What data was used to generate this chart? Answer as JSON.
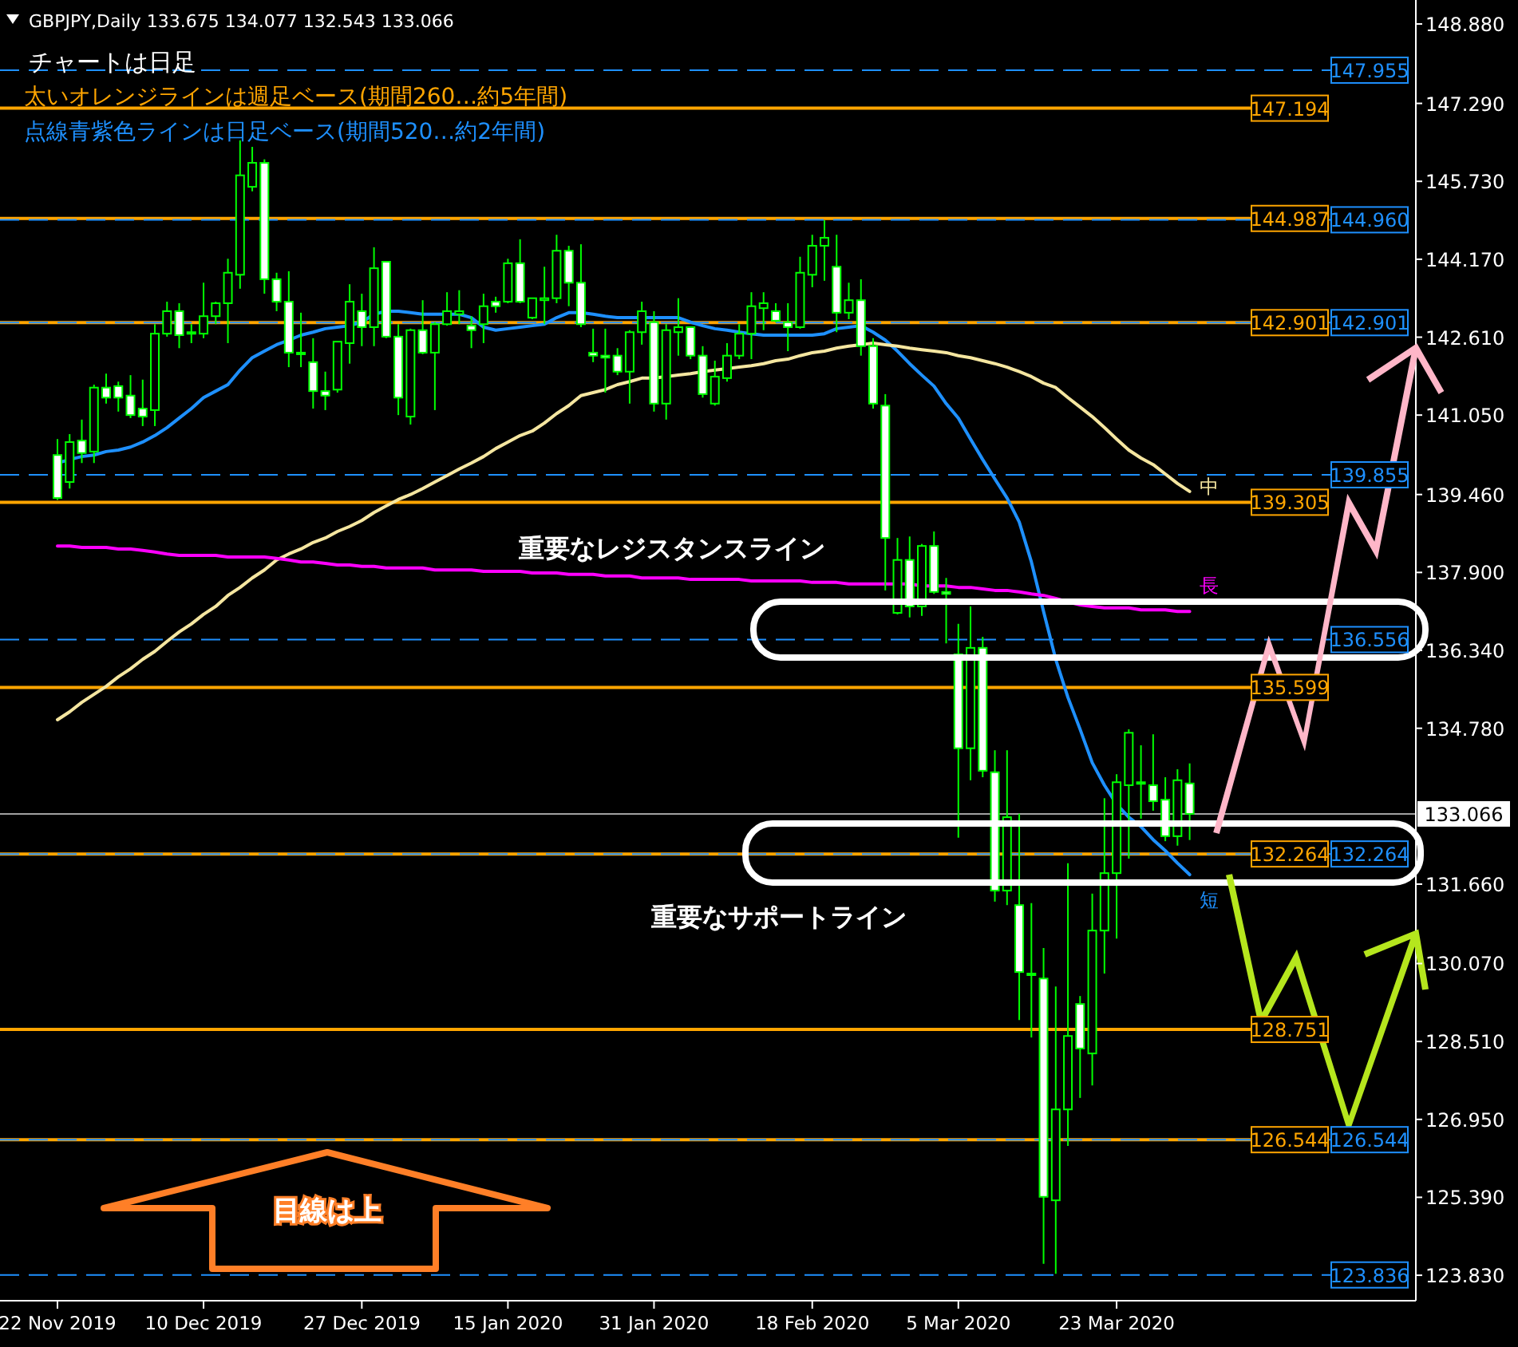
{
  "chart_data": {
    "type": "candlestick",
    "title": "GBPJPY,Daily 133.675 134.077 132.543 133.066",
    "color": "#00ff00",
    "categories": [
      "22 Nov 2019",
      null,
      null,
      null,
      null,
      null,
      null,
      null,
      null,
      null,
      null,
      null,
      "10 Dec 2019",
      null,
      null,
      null,
      null,
      null,
      null,
      null,
      null,
      null,
      null,
      null,
      null,
      "27 Dec 2019",
      null,
      null,
      null,
      null,
      null,
      null,
      null,
      null,
      null,
      null,
      null,
      "15 Jan 2020",
      null,
      null,
      null,
      null,
      null,
      null,
      null,
      null,
      null,
      null,
      null,
      "31 Jan 2020",
      null,
      null,
      null,
      null,
      null,
      null,
      null,
      null,
      null,
      null,
      null,
      null,
      "18 Feb 2020",
      null,
      null,
      null,
      null,
      null,
      null,
      null,
      null,
      null,
      null,
      null,
      "5 Mar 2020",
      null,
      null,
      null,
      null,
      null,
      null,
      null,
      null,
      null,
      null,
      null,
      null,
      "23 Mar 2020",
      null,
      null,
      null,
      null,
      null,
      null
    ],
    "ohlc": [
      [
        140.25,
        140.57,
        139.35,
        139.39
      ],
      [
        139.71,
        140.67,
        139.58,
        140.51
      ],
      [
        140.54,
        140.96,
        140.09,
        140.29
      ],
      [
        140.32,
        141.66,
        140.09,
        141.6
      ],
      [
        141.6,
        141.88,
        141.28,
        141.4
      ],
      [
        141.63,
        141.72,
        141.12,
        141.4
      ],
      [
        141.44,
        141.85,
        140.99,
        141.05
      ],
      [
        141.18,
        141.76,
        140.83,
        141.02
      ],
      [
        141.15,
        142.87,
        140.83,
        142.68
      ],
      [
        142.68,
        143.32,
        142.62,
        143.13
      ],
      [
        143.13,
        143.29,
        142.39,
        142.65
      ],
      [
        142.68,
        142.87,
        142.49,
        142.71
      ],
      [
        142.68,
        143.7,
        142.59,
        143.03
      ],
      [
        143.03,
        143.32,
        142.87,
        143.29
      ],
      [
        143.29,
        144.18,
        142.49,
        143.9
      ],
      [
        143.86,
        146.55,
        143.58,
        145.85
      ],
      [
        145.62,
        146.42,
        145.53,
        146.1
      ],
      [
        146.1,
        146.17,
        143.48,
        143.77
      ],
      [
        143.77,
        143.9,
        143.13,
        143.32
      ],
      [
        143.32,
        143.93,
        142.01,
        142.3
      ],
      [
        142.3,
        143.1,
        142.01,
        142.27
      ],
      [
        142.11,
        142.59,
        141.18,
        141.53
      ],
      [
        141.53,
        141.92,
        141.15,
        141.44
      ],
      [
        141.56,
        142.52,
        141.5,
        142.52
      ],
      [
        142.49,
        143.67,
        142.08,
        143.32
      ],
      [
        143.13,
        143.48,
        142.43,
        142.81
      ],
      [
        142.81,
        144.41,
        142.43,
        143.99
      ],
      [
        144.12,
        144.12,
        142.59,
        142.62
      ],
      [
        142.62,
        142.87,
        141.05,
        141.4
      ],
      [
        141.02,
        142.78,
        140.86,
        142.75
      ],
      [
        142.75,
        143.35,
        142.27,
        142.3
      ],
      [
        142.3,
        142.91,
        141.15,
        142.87
      ],
      [
        142.87,
        143.51,
        142.84,
        143.13
      ],
      [
        143.07,
        143.55,
        142.87,
        143.13
      ],
      [
        142.84,
        143.03,
        142.39,
        142.75
      ],
      [
        142.87,
        143.48,
        142.49,
        143.23
      ],
      [
        143.32,
        143.42,
        143.1,
        143.23
      ],
      [
        143.32,
        144.18,
        143.29,
        144.09
      ],
      [
        144.09,
        144.57,
        143.29,
        143.32
      ],
      [
        143.0,
        143.39,
        142.97,
        143.39
      ],
      [
        143.35,
        144.02,
        142.87,
        143.39
      ],
      [
        143.39,
        144.66,
        143.29,
        144.34
      ],
      [
        144.34,
        144.44,
        143.23,
        143.7
      ],
      [
        143.7,
        144.47,
        142.81,
        142.87
      ],
      [
        142.3,
        142.78,
        142.11,
        142.24
      ],
      [
        142.24,
        142.78,
        141.5,
        142.2
      ],
      [
        142.24,
        142.39,
        141.85,
        141.92
      ],
      [
        141.92,
        142.75,
        141.28,
        142.71
      ],
      [
        142.71,
        143.32,
        142.46,
        143.13
      ],
      [
        142.91,
        143.13,
        141.12,
        141.28
      ],
      [
        141.28,
        142.87,
        140.96,
        142.75
      ],
      [
        142.71,
        143.39,
        142.24,
        142.81
      ],
      [
        142.81,
        142.81,
        142.17,
        142.24
      ],
      [
        142.24,
        142.43,
        141.4,
        141.47
      ],
      [
        141.28,
        142.14,
        141.24,
        141.82
      ],
      [
        141.79,
        142.49,
        141.72,
        142.24
      ],
      [
        142.24,
        142.87,
        142.17,
        142.68
      ],
      [
        142.68,
        143.51,
        142.17,
        143.23
      ],
      [
        143.19,
        143.51,
        142.75,
        143.29
      ],
      [
        143.13,
        143.29,
        142.91,
        142.94
      ],
      [
        142.91,
        143.29,
        142.33,
        142.81
      ],
      [
        142.81,
        144.22,
        142.78,
        143.9
      ],
      [
        143.86,
        144.66,
        143.61,
        144.44
      ],
      [
        144.44,
        144.95,
        143.74,
        144.6
      ],
      [
        144.02,
        144.66,
        142.71,
        143.1
      ],
      [
        143.1,
        143.7,
        142.97,
        143.35
      ],
      [
        143.35,
        143.77,
        142.24,
        142.43
      ],
      [
        142.43,
        142.59,
        141.18,
        141.28
      ],
      [
        141.24,
        141.47,
        137.54,
        138.59
      ],
      [
        137.09,
        138.59,
        137.06,
        138.15
      ],
      [
        138.15,
        138.62,
        137.0,
        137.22
      ],
      [
        137.22,
        138.47,
        137.03,
        138.43
      ],
      [
        138.43,
        138.72,
        137.47,
        137.51
      ],
      [
        137.51,
        137.79,
        136.48,
        137.47
      ],
      [
        136.26,
        136.87,
        132.59,
        134.38
      ],
      [
        134.38,
        137.22,
        133.74,
        136.39
      ],
      [
        136.39,
        136.61,
        133.8,
        133.93
      ],
      [
        133.9,
        134.34,
        131.31,
        131.53
      ],
      [
        131.53,
        134.34,
        131.24,
        133.0
      ],
      [
        131.24,
        133.07,
        128.94,
        129.9
      ],
      [
        129.87,
        131.28,
        128.59,
        129.84
      ],
      [
        129.77,
        130.38,
        124.06,
        125.4
      ],
      [
        125.33,
        129.61,
        123.86,
        127.15
      ],
      [
        127.15,
        132.08,
        126.42,
        128.62
      ],
      [
        129.26,
        129.42,
        127.38,
        128.37
      ],
      [
        128.27,
        131.47,
        127.63,
        130.73
      ],
      [
        130.73,
        133.38,
        129.87,
        131.88
      ],
      [
        131.88,
        133.86,
        130.57,
        133.7
      ],
      [
        133.64,
        134.76,
        132.17,
        134.69
      ],
      [
        133.7,
        134.44,
        132.97,
        133.67
      ],
      [
        133.64,
        134.66,
        133.13,
        133.32
      ],
      [
        133.35,
        133.8,
        132.52,
        132.62
      ],
      [
        132.62,
        133.96,
        132.43,
        133.74
      ],
      [
        133.675,
        134.077,
        132.543,
        133.066
      ]
    ],
    "series": [
      {
        "name": "短",
        "type": "line",
        "color": "#1e90ff",
        "values": [
          140.09,
          140.16,
          140.22,
          140.25,
          140.32,
          140.35,
          140.41,
          140.51,
          140.64,
          140.8,
          140.99,
          141.18,
          141.4,
          141.53,
          141.66,
          141.95,
          142.2,
          142.33,
          142.46,
          142.55,
          142.65,
          142.71,
          142.78,
          142.81,
          142.84,
          142.91,
          143.07,
          143.13,
          143.13,
          143.1,
          143.07,
          143.07,
          143.07,
          143.07,
          143.0,
          142.81,
          142.75,
          142.78,
          142.81,
          142.84,
          142.87,
          143.0,
          143.1,
          143.1,
          143.07,
          143.03,
          143.0,
          143.0,
          143.0,
          143.0,
          143.0,
          143.0,
          142.91,
          142.84,
          142.78,
          142.75,
          142.71,
          142.68,
          142.65,
          142.65,
          142.65,
          142.65,
          142.65,
          142.68,
          142.78,
          142.81,
          142.84,
          142.71,
          142.55,
          142.33,
          142.08,
          141.85,
          141.63,
          141.28,
          140.99,
          140.57,
          140.16,
          139.77,
          139.39,
          138.91,
          138.11,
          137.12,
          136.16,
          135.4,
          134.76,
          134.09,
          133.64,
          133.26,
          133.0,
          132.81,
          132.55,
          132.33,
          132.08,
          131.85
        ]
      },
      {
        "name": "中",
        "type": "line",
        "color": "#f5e6a0",
        "values": [
          134.95,
          135.11,
          135.3,
          135.46,
          135.62,
          135.81,
          135.97,
          136.16,
          136.32,
          136.52,
          136.71,
          136.87,
          137.06,
          137.22,
          137.44,
          137.6,
          137.79,
          137.95,
          138.15,
          138.27,
          138.37,
          138.5,
          138.59,
          138.72,
          138.82,
          138.94,
          139.1,
          139.23,
          139.36,
          139.46,
          139.58,
          139.71,
          139.84,
          139.97,
          140.09,
          140.22,
          140.38,
          140.51,
          140.64,
          140.73,
          140.89,
          141.08,
          141.24,
          141.44,
          141.5,
          141.56,
          141.66,
          141.72,
          141.79,
          141.79,
          141.82,
          141.85,
          141.88,
          141.92,
          141.95,
          141.98,
          142.01,
          142.04,
          142.08,
          142.14,
          142.17,
          142.24,
          142.3,
          142.33,
          142.39,
          142.43,
          142.46,
          142.49,
          142.46,
          142.43,
          142.39,
          142.36,
          142.33,
          142.3,
          142.24,
          142.2,
          142.14,
          142.08,
          142.01,
          141.92,
          141.82,
          141.69,
          141.6,
          141.4,
          141.21,
          141.02,
          140.8,
          140.57,
          140.35,
          140.19,
          140.06,
          139.87,
          139.68,
          139.52
        ]
      },
      {
        "name": "長",
        "type": "line",
        "color": "#ff00ff",
        "values": [
          138.43,
          138.43,
          138.4,
          138.4,
          138.4,
          138.37,
          138.37,
          138.34,
          138.31,
          138.27,
          138.24,
          138.24,
          138.24,
          138.24,
          138.21,
          138.21,
          138.21,
          138.21,
          138.18,
          138.15,
          138.11,
          138.11,
          138.08,
          138.05,
          138.05,
          138.02,
          138.02,
          137.99,
          137.99,
          137.99,
          137.99,
          137.95,
          137.95,
          137.95,
          137.95,
          137.92,
          137.92,
          137.92,
          137.92,
          137.89,
          137.89,
          137.89,
          137.86,
          137.86,
          137.86,
          137.83,
          137.83,
          137.83,
          137.79,
          137.79,
          137.79,
          137.79,
          137.76,
          137.76,
          137.76,
          137.76,
          137.76,
          137.73,
          137.73,
          137.73,
          137.73,
          137.73,
          137.7,
          137.7,
          137.7,
          137.67,
          137.67,
          137.67,
          137.67,
          137.67,
          137.67,
          137.63,
          137.63,
          137.63,
          137.6,
          137.6,
          137.57,
          137.54,
          137.54,
          137.51,
          137.47,
          137.44,
          137.38,
          137.31,
          137.25,
          137.22,
          137.19,
          137.19,
          137.19,
          137.15,
          137.15,
          137.15,
          137.12,
          137.12
        ]
      }
    ],
    "ylim": [
      123.32,
      149.36
    ],
    "yticks": [
      {
        "value": 148.88,
        "label": "148.880"
      },
      {
        "value": 147.29,
        "label": "147.290"
      },
      {
        "value": 145.73,
        "label": "145.730"
      },
      {
        "value": 144.17,
        "label": "144.170"
      },
      {
        "value": 142.61,
        "label": "142.610"
      },
      {
        "value": 141.05,
        "label": "141.050"
      },
      {
        "value": 139.46,
        "label": "139.460"
      },
      {
        "value": 137.9,
        "label": "137.900"
      },
      {
        "value": 136.34,
        "label": "136.340"
      },
      {
        "value": 134.78,
        "label": "134.780"
      },
      {
        "value": 131.66,
        "label": "131.660"
      },
      {
        "value": 130.07,
        "label": "130.070"
      },
      {
        "value": 128.51,
        "label": "128.510"
      },
      {
        "value": 126.95,
        "label": "126.950"
      },
      {
        "value": 125.39,
        "label": "125.390"
      },
      {
        "value": 123.83,
        "label": "123.830"
      }
    ],
    "ref_lines": [
      {
        "axis": "y",
        "value": 147.194,
        "label": "147.194",
        "color": "#ffa500",
        "line_style": "solid"
      },
      {
        "axis": "y",
        "value": 144.987,
        "label": "144.987",
        "color": "#ffa500",
        "line_style": "solid"
      },
      {
        "axis": "y",
        "value": 142.901,
        "label": "142.901",
        "color": "#ffa500",
        "line_style": "solid"
      },
      {
        "axis": "y",
        "value": 139.305,
        "label": "139.305",
        "color": "#ffa500",
        "line_style": "solid"
      },
      {
        "axis": "y",
        "value": 135.599,
        "label": "135.599",
        "color": "#ffa500",
        "line_style": "solid"
      },
      {
        "axis": "y",
        "value": 132.264,
        "label": "132.264",
        "color": "#ffa500",
        "line_style": "solid"
      },
      {
        "axis": "y",
        "value": 128.751,
        "label": "128.751",
        "color": "#ffa500",
        "line_style": "solid"
      },
      {
        "axis": "y",
        "value": 126.544,
        "label": "126.544",
        "color": "#ffa500",
        "line_style": "solid"
      },
      {
        "axis": "y",
        "value": 147.955,
        "label": "147.955",
        "color": "#1e90ff",
        "line_style": "dashed"
      },
      {
        "axis": "y",
        "value": 144.96,
        "label": "144.960",
        "color": "#1e90ff",
        "line_style": "dashed"
      },
      {
        "axis": "y",
        "value": 142.901,
        "label": "142.901",
        "color": "#1e90ff",
        "line_style": "dashed"
      },
      {
        "axis": "y",
        "value": 139.855,
        "label": "139.855",
        "color": "#1e90ff",
        "line_style": "dashed"
      },
      {
        "axis": "y",
        "value": 136.556,
        "label": "136.556",
        "color": "#1e90ff",
        "line_style": "dashed"
      },
      {
        "axis": "y",
        "value": 132.264,
        "label": "132.264",
        "color": "#1e90ff",
        "line_style": "dashed"
      },
      {
        "axis": "y",
        "value": 126.544,
        "label": "126.544",
        "color": "#1e90ff",
        "line_style": "dashed"
      },
      {
        "axis": "y",
        "value": 123.836,
        "label": "123.836",
        "color": "#1e90ff",
        "line_style": "dashed"
      },
      {
        "axis": "y",
        "value": 133.066,
        "label": "133.066",
        "color": "#a0a0a0",
        "line_style": "solid"
      }
    ],
    "annotations": [
      "チャートは日足",
      "太いオレンジラインは週足ベース(期間260…約5年間)",
      "点線青紫色ラインは日足ベース(期間520…約2年間)",
      "重要なレジスタンスライン",
      "重要なサポートライン",
      "目線は上"
    ]
  }
}
